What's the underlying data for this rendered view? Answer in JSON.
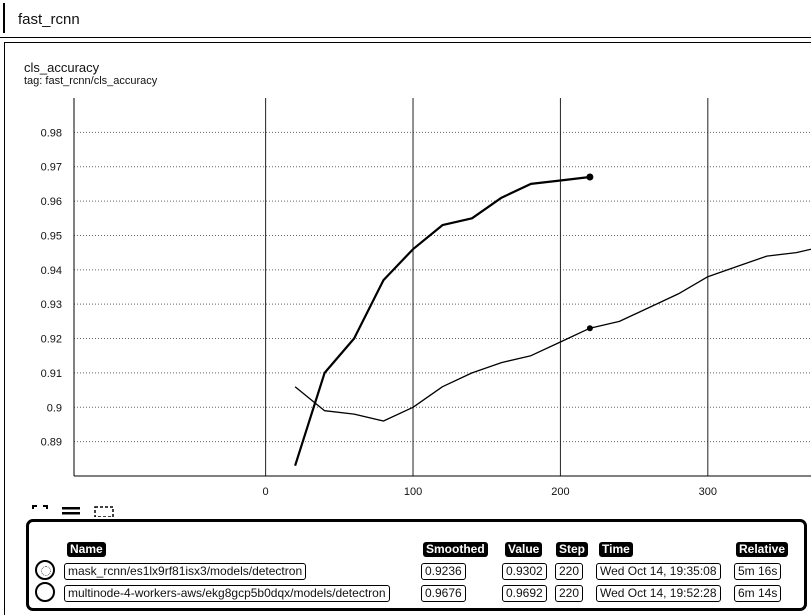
{
  "header": {
    "title": "fast_rcnn"
  },
  "card": {
    "title": "cls_accuracy",
    "tag": "tag: fast_rcnn/cls_accuracy"
  },
  "chart_data": {
    "type": "line",
    "title": "cls_accuracy",
    "xlabel": "",
    "ylabel": "",
    "xlim": [
      -130,
      370
    ],
    "ylim": [
      0.88,
      0.99
    ],
    "x_ticks": [
      0,
      100,
      200,
      300
    ],
    "y_ticks": [
      0.89,
      0.9,
      0.91,
      0.92,
      0.93,
      0.94,
      0.95,
      0.96,
      0.97,
      0.98
    ],
    "y_tick_labels": [
      "0.89",
      "0.9",
      "0.91",
      "0.92",
      "0.93",
      "0.94",
      "0.95",
      "0.96",
      "0.97",
      "0.98"
    ],
    "grid": true,
    "series": [
      {
        "name": "multinode-4-workers-aws/ekg8gcp5b0dqx/models/detectron",
        "x": [
          20,
          40,
          60,
          80,
          100,
          120,
          140,
          160,
          180,
          200,
          220
        ],
        "y": [
          0.883,
          0.91,
          0.92,
          0.937,
          0.946,
          0.953,
          0.955,
          0.961,
          0.965,
          0.966,
          0.967
        ],
        "marker_at": 220
      },
      {
        "name": "mask_rcnn/es1lx9rf81isx3/models/detectron",
        "x": [
          20,
          40,
          60,
          80,
          100,
          120,
          140,
          160,
          180,
          200,
          220,
          240,
          260,
          280,
          300,
          320,
          340,
          360,
          370
        ],
        "y": [
          0.906,
          0.899,
          0.898,
          0.896,
          0.9,
          0.906,
          0.91,
          0.913,
          0.915,
          0.919,
          0.923,
          0.925,
          0.929,
          0.933,
          0.938,
          0.941,
          0.944,
          0.945,
          0.946
        ],
        "marker_at": 220
      }
    ]
  },
  "legend": {
    "headers": [
      "Name",
      "Smoothed",
      "Value",
      "Step",
      "Time",
      "Relative"
    ],
    "rows": [
      {
        "name": "mask_rcnn/es1lx9rf81isx3/models/detectron",
        "smoothed": "0.9236",
        "value": "0.9302",
        "step": "220",
        "time": "Wed Oct 14, 19:35:08",
        "relative": "5m 16s"
      },
      {
        "name": "multinode-4-workers-aws/ekg8gcp5b0dqx/models/detectron",
        "smoothed": "0.9676",
        "value": "0.9692",
        "step": "220",
        "time": "Wed Oct 14, 19:52:28",
        "relative": "6m 14s"
      }
    ]
  }
}
